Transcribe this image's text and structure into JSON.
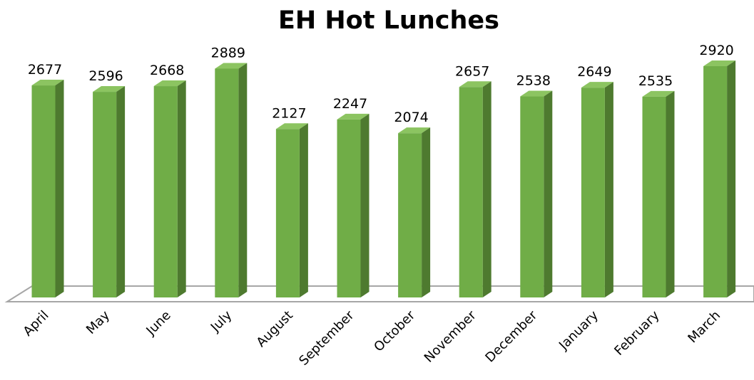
{
  "chart_data": {
    "type": "bar",
    "title": "EH Hot Lunches",
    "categories": [
      "April",
      "May",
      "June",
      "July",
      "August",
      "September",
      "October",
      "November",
      "December",
      "January",
      "February",
      "March"
    ],
    "values": [
      2677,
      2596,
      2668,
      2889,
      2127,
      2247,
      2074,
      2657,
      2538,
      2649,
      2535,
      2920
    ],
    "color": "#70ad47"
  }
}
